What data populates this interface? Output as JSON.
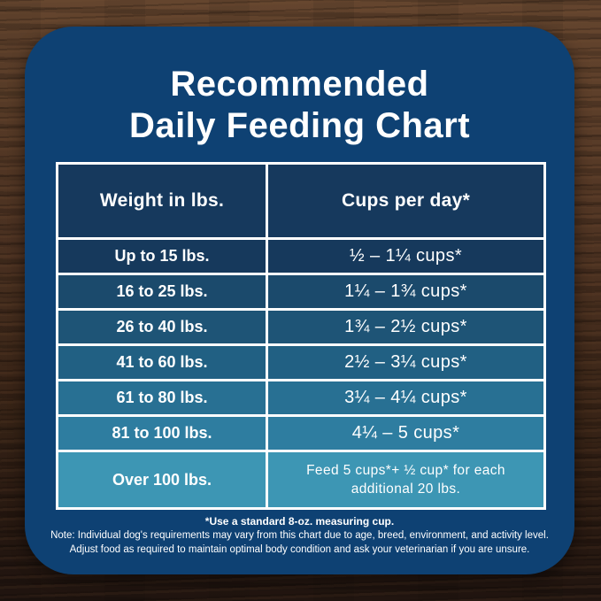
{
  "title": {
    "line1": "Recommended",
    "line2": "Daily Feeding Chart"
  },
  "chart_data": {
    "type": "table",
    "title": "Recommended Daily Feeding Chart",
    "columns": [
      "Weight in lbs.",
      "Cups per day*"
    ],
    "rows": [
      [
        "Up to 15 lbs.",
        "½ – 1¼ cups*"
      ],
      [
        "16 to 25 lbs.",
        "1¼ – 1¾ cups*"
      ],
      [
        "26 to 40 lbs.",
        "1¾ – 2½ cups*"
      ],
      [
        "41 to 60 lbs.",
        "2½ – 3¼ cups*"
      ],
      [
        "61 to 80 lbs.",
        "3¼ – 4¼ cups*"
      ],
      [
        "81 to 100 lbs.",
        "4¼ – 5 cups*"
      ],
      [
        "Over 100 lbs.",
        "Feed 5 cups*+ ½ cup* for each additional 20 lbs."
      ]
    ],
    "footnotes": [
      "*Use a standard 8-oz. measuring cup.",
      "Note: Individual dog's requirements may vary from this chart due to age, breed, environment, and activity level.",
      "Adjust food as required to maintain optimal body condition and ask your veterinarian if you are unsure."
    ]
  },
  "footer": {
    "note1": "*Use a standard 8-oz. measuring cup.",
    "note2": "Note: Individual dog's requirements may vary from this chart due to age, breed, environment, and activity level.",
    "note3": "Adjust food as required to maintain optimal body condition and ask your veterinarian if you are unsure."
  },
  "colors": {
    "card_bg": "#0e4173",
    "header_cell_bg": "#16395d",
    "row_colors": [
      "#16395c",
      "#1b4a6c",
      "#1e5476",
      "#216083",
      "#287093",
      "#2e7da0",
      "#3d96b4"
    ],
    "table_border": "#ffffff",
    "text": "#ffffff"
  }
}
